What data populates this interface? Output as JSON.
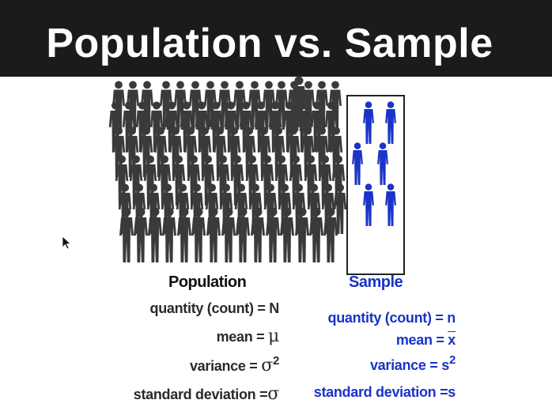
{
  "slide": {
    "title": "Population vs. Sample"
  },
  "population": {
    "heading": "Population",
    "quantity_label": "quantity (count) = ",
    "quantity_symbol": "N",
    "mean_label": "mean = ",
    "mean_symbol": "μ",
    "variance_label": "variance = ",
    "variance_symbol": "σ",
    "variance_exp": "2",
    "sd_label": "standard deviation =",
    "sd_symbol": "σ"
  },
  "sample": {
    "heading": "Sample",
    "quantity_label": "quantity (count) = ",
    "quantity_symbol": "n",
    "mean_label": "mean = ",
    "mean_symbol": "x",
    "variance_label": "variance = ",
    "variance_symbol": "s",
    "variance_exp": "2",
    "sd_label": "standard deviation =",
    "sd_symbol": "s"
  },
  "colors": {
    "population_figure": "#3a3a3a",
    "sample_figure": "#1a33c8",
    "title_bar": "#1b1b1b"
  }
}
